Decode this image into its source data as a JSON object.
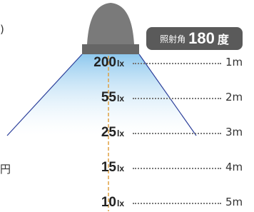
{
  "badge": {
    "label": "照射角",
    "value": "180",
    "unit": "度"
  },
  "rows": [
    {
      "lux": "200",
      "unit": "lx",
      "distance": "1m"
    },
    {
      "lux": "55",
      "unit": "lx",
      "distance": "2m"
    },
    {
      "lux": "25",
      "unit": "lx",
      "distance": "3m"
    },
    {
      "lux": "15",
      "unit": "lx",
      "distance": "4m"
    },
    {
      "lux": "10",
      "unit": "lx",
      "distance": "5m"
    }
  ],
  "fragments": [
    ")",
    "円"
  ]
}
